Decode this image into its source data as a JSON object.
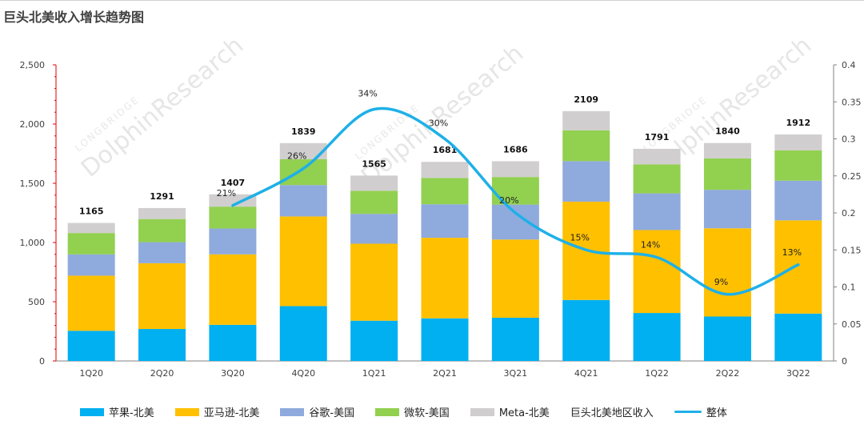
{
  "chart_data": {
    "type": "bar",
    "stacked": true,
    "title": "巨头北美收入增长趋势图",
    "categories": [
      "1Q20",
      "2Q20",
      "3Q20",
      "4Q20",
      "1Q21",
      "2Q21",
      "3Q21",
      "4Q21",
      "1Q22",
      "2Q22",
      "3Q22"
    ],
    "totals": [
      1165,
      1291,
      1407,
      1839,
      1565,
      1681,
      1686,
      2109,
      1791,
      1840,
      1912
    ],
    "series": [
      {
        "name": "苹果-北美",
        "color": "#00b0f0",
        "values": [
          255,
          270,
          305,
          463,
          340,
          360,
          365,
          515,
          405,
          375,
          400
        ]
      },
      {
        "name": "亚马逊-北美",
        "color": "#ffc000",
        "values": [
          465,
          555,
          595,
          757,
          650,
          680,
          660,
          830,
          700,
          745,
          787
        ]
      },
      {
        "name": "谷歌-美国",
        "color": "#8faadc",
        "values": [
          180,
          178,
          218,
          265,
          252,
          283,
          295,
          342,
          310,
          325,
          335
        ]
      },
      {
        "name": "微软-美国",
        "color": "#92d050",
        "values": [
          180,
          195,
          185,
          218,
          195,
          222,
          233,
          260,
          245,
          265,
          255
        ]
      },
      {
        "name": "Meta-北美",
        "color": "#d0cece",
        "values": [
          85,
          93,
          104,
          136,
          128,
          136,
          133,
          162,
          131,
          130,
          135
        ]
      }
    ],
    "line": {
      "name": "整体",
      "color": "#1eb0e8",
      "values": [
        null,
        null,
        0.21,
        0.26,
        0.34,
        0.3,
        0.2,
        0.15,
        0.14,
        0.09,
        0.13
      ],
      "labels": [
        null,
        null,
        "21%",
        "26%",
        "34%",
        "30%",
        "20%",
        "15%",
        "14%",
        "9%",
        "13%"
      ]
    },
    "extra_legend": "巨头北美地区收入",
    "y_left": {
      "min": 0,
      "max": 2500,
      "ticks": [
        "0",
        "500",
        "1,000",
        "1,500",
        "2,000",
        "2,500"
      ]
    },
    "y_right": {
      "min": 0,
      "max": 0.4,
      "ticks": [
        "0",
        "0.05",
        "0.1",
        "0.15",
        "0.2",
        "0.25",
        "0.3",
        "0.35",
        "0.4"
      ]
    },
    "grid": false,
    "legend_position": "bottom"
  },
  "watermarks": [
    "LONGBRIDGE",
    "DolphinResearch"
  ]
}
